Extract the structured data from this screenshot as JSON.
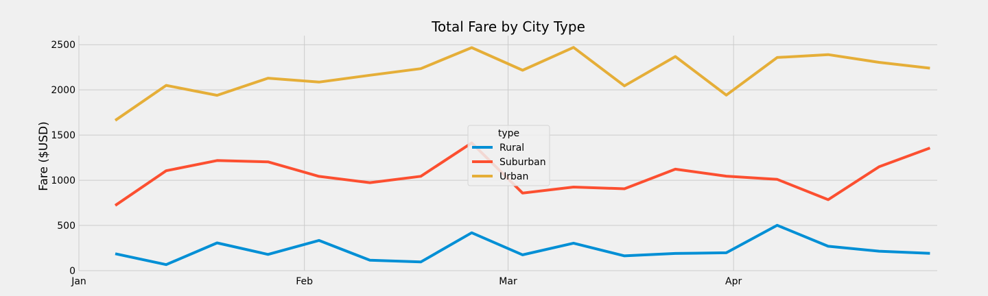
{
  "chart_data": {
    "type": "line",
    "title": "Total Fare by City Type",
    "xlabel": "",
    "ylabel": "Fare ($USD)",
    "x_ticks": [
      {
        "label": "Jan",
        "date": "2019-01-01"
      },
      {
        "label": "Feb",
        "date": "2019-02-01"
      },
      {
        "label": "Mar",
        "date": "2019-03-01"
      },
      {
        "label": "Apr",
        "date": "2019-04-01"
      }
    ],
    "xlim": [
      "2019-01-01",
      "2019-04-29"
    ],
    "y_ticks": [
      0,
      500,
      1000,
      1500,
      2000,
      2500
    ],
    "ylim": [
      0,
      2600
    ],
    "grid": true,
    "legend": {
      "title": "type",
      "placement": "center"
    },
    "x": [
      "2019-01-06",
      "2019-01-13",
      "2019-01-20",
      "2019-01-27",
      "2019-02-03",
      "2019-02-10",
      "2019-02-17",
      "2019-02-24",
      "2019-03-03",
      "2019-03-10",
      "2019-03-17",
      "2019-03-24",
      "2019-03-31",
      "2019-04-07",
      "2019-04-14",
      "2019-04-21",
      "2019-04-28"
    ],
    "series": [
      {
        "name": "Rural",
        "color": "#008fd5",
        "values": [
          187,
          67,
          307,
          180,
          334,
          115,
          96,
          419,
          175,
          304,
          164,
          190,
          198,
          502,
          270,
          215,
          191
        ]
      },
      {
        "name": "Suburban",
        "color": "#fc4f30",
        "values": [
          722,
          1105,
          1218,
          1204,
          1043,
          973,
          1044,
          1413,
          858,
          925,
          906,
          1123,
          1045,
          1010,
          785,
          1149,
          1357
        ]
      },
      {
        "name": "Urban",
        "color": "#e5ae38",
        "values": [
          1662,
          2050,
          1940,
          2129,
          2086,
          2162,
          2235,
          2467,
          2217,
          2470,
          2044,
          2369,
          1942,
          2358,
          2390,
          2304,
          2240
        ]
      }
    ]
  }
}
